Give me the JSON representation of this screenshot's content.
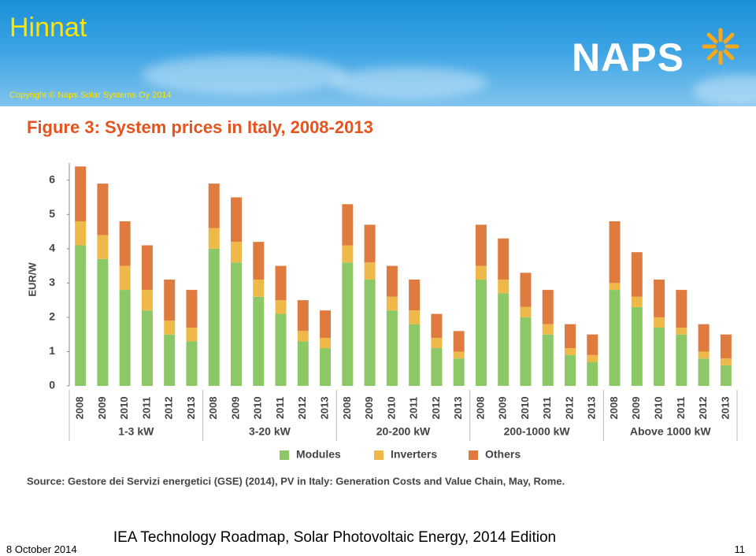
{
  "header": {
    "title": "Hinnat",
    "copyright": "Copyright © Naps Solar Systems Oy 2014",
    "logo": "NAPS"
  },
  "chart_data": {
    "type": "bar",
    "stacked": true,
    "title": "Figure 3: System prices in Italy, 2008-2013",
    "ylabel": "EUR/W",
    "categories": [
      "2008",
      "2009",
      "2010",
      "2011",
      "2012",
      "2013",
      "2008",
      "2009",
      "2010",
      "2011",
      "2012",
      "2013",
      "2008",
      "2009",
      "2010",
      "2011",
      "2012",
      "2013",
      "2008",
      "2009",
      "2010",
      "2011",
      "2012",
      "2013",
      "2008",
      "2009",
      "2010",
      "2011",
      "2012",
      "2013"
    ],
    "groups": [
      "1-3 kW",
      "3-20 kW",
      "20-200 kW",
      "200-1000 kW",
      "Above 1000 kW"
    ],
    "series": [
      {
        "name": "Modules",
        "color": "#8cc865",
        "values": [
          4.1,
          3.7,
          2.8,
          2.2,
          1.5,
          1.3,
          4.0,
          3.6,
          2.6,
          2.1,
          1.3,
          1.1,
          3.6,
          3.1,
          2.2,
          1.8,
          1.1,
          0.8,
          3.1,
          2.7,
          2.0,
          1.5,
          0.9,
          0.7,
          2.8,
          2.3,
          1.7,
          1.5,
          0.8,
          0.6
        ]
      },
      {
        "name": "Inverters",
        "color": "#efb94a",
        "values": [
          0.7,
          0.7,
          0.7,
          0.6,
          0.4,
          0.4,
          0.6,
          0.6,
          0.5,
          0.4,
          0.3,
          0.3,
          0.5,
          0.5,
          0.4,
          0.4,
          0.3,
          0.2,
          0.4,
          0.4,
          0.3,
          0.3,
          0.2,
          0.2,
          0.2,
          0.3,
          0.3,
          0.2,
          0.2,
          0.2
        ]
      },
      {
        "name": "Others",
        "color": "#e07b40",
        "values": [
          1.6,
          1.5,
          1.3,
          1.3,
          1.2,
          1.1,
          1.3,
          1.3,
          1.1,
          1.0,
          0.9,
          0.8,
          1.2,
          1.1,
          0.9,
          0.9,
          0.7,
          0.6,
          1.2,
          1.2,
          1.0,
          1.0,
          0.7,
          0.6,
          1.8,
          1.3,
          1.1,
          1.1,
          0.8,
          0.7
        ]
      }
    ],
    "ylim": [
      0,
      6.5
    ],
    "yticks": [
      0,
      1,
      2,
      3,
      4,
      5,
      6
    ],
    "grid": false,
    "legend": "bottom",
    "source": "Source: Gestore dei Servizi energetici (GSE) (2014), PV in Italy: Generation Costs and Value Chain, May, Rome."
  },
  "footer": {
    "caption": "IEA Technology Roadmap, Solar Photovoltaic Energy, 2014 Edition",
    "date": "8 October 2014",
    "page": "11"
  }
}
